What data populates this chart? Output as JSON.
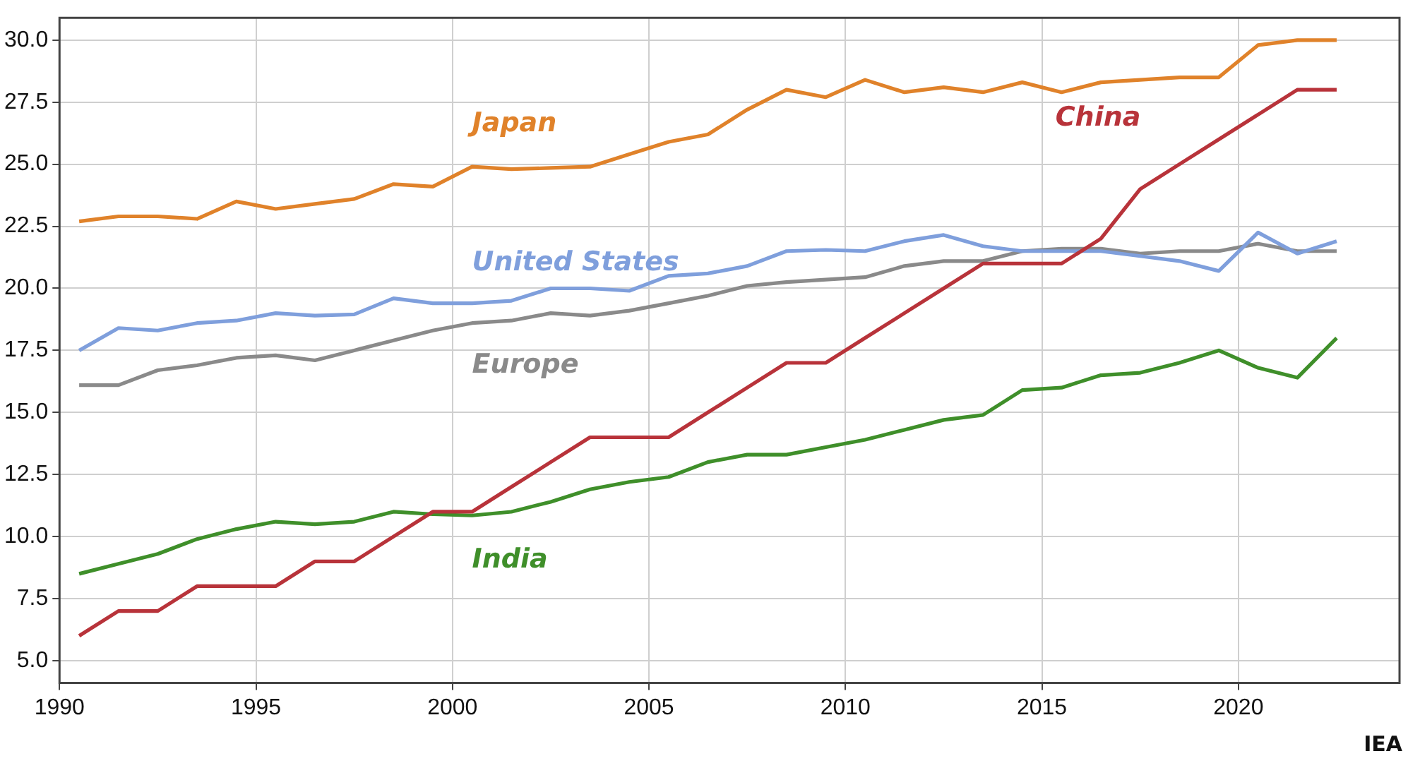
{
  "chart_data": {
    "type": "line",
    "x": [
      1990.5,
      1991.5,
      1992.5,
      1993.5,
      1994.5,
      1995.5,
      1996.5,
      1997.5,
      1998.5,
      1999.5,
      2000.5,
      2001.5,
      2002.5,
      2003.5,
      2004.5,
      2005.5,
      2006.5,
      2007.5,
      2008.5,
      2009.5,
      2010.5,
      2011.5,
      2012.5,
      2013.5,
      2014.5,
      2015.5,
      2016.5,
      2017.5,
      2018.5,
      2019.5,
      2020.5,
      2021.5,
      2022.5
    ],
    "series": [
      {
        "name": "Japan",
        "color": "#e0822a",
        "values": [
          22.7,
          22.9,
          22.9,
          22.8,
          23.5,
          23.2,
          23.4,
          23.6,
          24.2,
          24.1,
          24.9,
          24.8,
          24.85,
          24.9,
          25.4,
          25.9,
          26.2,
          27.2,
          28.0,
          27.7,
          28.4,
          27.9,
          28.1,
          27.9,
          28.3,
          27.9,
          28.3,
          28.4,
          28.5,
          28.5,
          29.8,
          30.0,
          30.0
        ]
      },
      {
        "name": "China",
        "color": "#b8333a",
        "values": [
          6.0,
          7.0,
          7.0,
          8.0,
          8.0,
          8.0,
          9.0,
          9.0,
          10.0,
          11.0,
          11.0,
          12.0,
          13.0,
          14.0,
          14.0,
          14.0,
          15.0,
          16.0,
          17.0,
          17.0,
          18.0,
          19.0,
          20.0,
          21.0,
          21.0,
          21.0,
          22.0,
          24.0,
          25.0,
          26.0,
          27.0,
          28.0,
          28.0
        ]
      },
      {
        "name": "United States",
        "color": "#7f9fdc",
        "values": [
          17.5,
          18.4,
          18.3,
          18.6,
          18.7,
          19.0,
          18.9,
          18.95,
          19.6,
          19.4,
          19.4,
          19.5,
          20.0,
          20.0,
          19.9,
          20.5,
          20.6,
          20.9,
          21.5,
          21.55,
          21.5,
          21.9,
          22.15,
          21.7,
          21.5,
          21.5,
          21.5,
          21.3,
          21.1,
          20.7,
          22.25,
          21.4,
          21.9
        ]
      },
      {
        "name": "Europe",
        "color": "#8a8a8a",
        "values": [
          16.1,
          16.1,
          16.7,
          16.9,
          17.2,
          17.3,
          17.1,
          17.5,
          17.9,
          18.3,
          18.6,
          18.7,
          19.0,
          18.9,
          19.1,
          19.4,
          19.7,
          20.1,
          20.25,
          20.35,
          20.45,
          20.9,
          21.1,
          21.1,
          21.5,
          21.6,
          21.6,
          21.4,
          21.5,
          21.5,
          21.8,
          21.5,
          21.5
        ]
      },
      {
        "name": "India",
        "color": "#3f8f2a",
        "values": [
          8.5,
          8.9,
          9.3,
          9.9,
          10.3,
          10.6,
          10.5,
          10.6,
          11.0,
          10.9,
          10.85,
          11.0,
          11.4,
          11.9,
          12.2,
          12.4,
          13.0,
          13.3,
          13.3,
          13.6,
          13.9,
          14.3,
          14.7,
          14.9,
          15.9,
          16.0,
          16.5,
          16.6,
          17.0,
          17.5,
          16.8,
          16.4,
          18.0
        ]
      }
    ],
    "xlim": [
      1990,
      2024.1
    ],
    "xticks": [
      1990,
      1995,
      2000,
      2005,
      2010,
      2015,
      2020
    ],
    "ylim": [
      4.1,
      30.9
    ],
    "yticks": [
      {
        "value": 5,
        "label": "5.0"
      },
      {
        "value": 7.5,
        "label": "7.5"
      },
      {
        "value": 10,
        "label": "10.0"
      },
      {
        "value": 12.5,
        "label": "12.5"
      },
      {
        "value": 15,
        "label": "15.0"
      },
      {
        "value": 17.5,
        "label": "17.5"
      },
      {
        "value": 20,
        "label": "20.0"
      },
      {
        "value": 22.5,
        "label": "22.5"
      },
      {
        "value": 25,
        "label": "25.0"
      },
      {
        "value": 27.5,
        "label": "27.5"
      },
      {
        "value": 30,
        "label": "30.0"
      }
    ],
    "grid": true,
    "legend": false,
    "marker": "none",
    "line_style": "solid",
    "annotations": [
      "IEA"
    ]
  }
}
